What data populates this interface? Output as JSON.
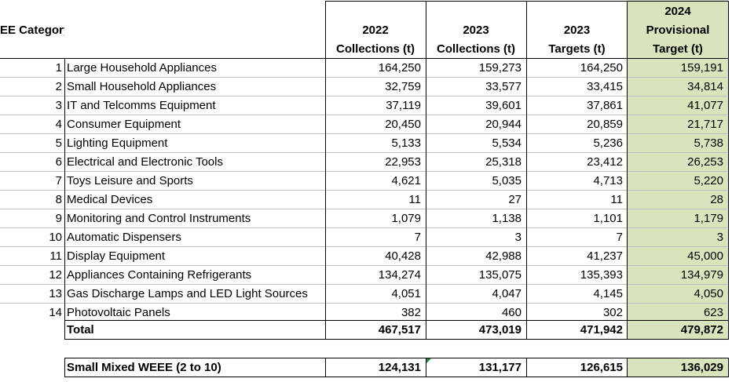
{
  "table": {
    "headers": {
      "category": "EEE Category",
      "col_2022": [
        "2022",
        "Collections (t)"
      ],
      "col_2023c": [
        "2023",
        "Collections (t)"
      ],
      "col_2023t": [
        "2023",
        "Targets (t)"
      ],
      "col_2024": [
        "2024",
        "Provisional",
        "Target (t)"
      ]
    },
    "rows": [
      {
        "num": "1",
        "name": "Large Household Appliances",
        "c2022": "164,250",
        "c2023": "159,273",
        "t2023": "164,250",
        "t2024": "159,191"
      },
      {
        "num": "2",
        "name": "Small Household Appliances",
        "c2022": "32,759",
        "c2023": "33,577",
        "t2023": "33,415",
        "t2024": "34,814"
      },
      {
        "num": "3",
        "name": "IT and Telcomms Equipment",
        "c2022": "37,119",
        "c2023": "39,601",
        "t2023": "37,861",
        "t2024": "41,077"
      },
      {
        "num": "4",
        "name": "Consumer Equipment",
        "c2022": "20,450",
        "c2023": "20,944",
        "t2023": "20,859",
        "t2024": "21,717"
      },
      {
        "num": "5",
        "name": "Lighting Equipment",
        "c2022": "5,133",
        "c2023": "5,534",
        "t2023": "5,236",
        "t2024": "5,738"
      },
      {
        "num": "6",
        "name": "Electrical and Electronic Tools",
        "c2022": "22,953",
        "c2023": "25,318",
        "t2023": "23,412",
        "t2024": "26,253"
      },
      {
        "num": "7",
        "name": "Toys Leisure and Sports",
        "c2022": "4,621",
        "c2023": "5,035",
        "t2023": "4,713",
        "t2024": "5,220"
      },
      {
        "num": "8",
        "name": "Medical Devices",
        "c2022": "11",
        "c2023": "27",
        "t2023": "11",
        "t2024": "28"
      },
      {
        "num": "9",
        "name": "Monitoring and Control Instruments",
        "c2022": "1,079",
        "c2023": "1,138",
        "t2023": "1,101",
        "t2024": "1,179"
      },
      {
        "num": "10",
        "name": "Automatic Dispensers",
        "c2022": "7",
        "c2023": "3",
        "t2023": "7",
        "t2024": "3"
      },
      {
        "num": "11",
        "name": "Display Equipment",
        "c2022": "40,428",
        "c2023": "42,988",
        "t2023": "41,237",
        "t2024": "45,000"
      },
      {
        "num": "12",
        "name": "Appliances Containing Refrigerants",
        "c2022": "134,274",
        "c2023": "135,075",
        "t2023": "135,393",
        "t2024": "134,979"
      },
      {
        "num": "13",
        "name": "Gas Discharge Lamps and LED Light Sources",
        "c2022": "4,051",
        "c2023": "4,047",
        "t2023": "4,145",
        "t2024": "4,050"
      },
      {
        "num": "14",
        "name": "Photovoltaic Panels",
        "c2022": "382",
        "c2023": "460",
        "t2023": "302",
        "t2024": "623"
      }
    ],
    "total": {
      "label": "Total",
      "c2022": "467,517",
      "c2023": "473,019",
      "t2023": "471,942",
      "t2024": "479,872"
    },
    "summary": {
      "label": "Small Mixed WEEE (2 to 10)",
      "c2022": "124,131",
      "c2023": "131,177",
      "t2023": "126,615",
      "t2024": "136,029"
    }
  },
  "colors": {
    "highlight": "#d8e4bc",
    "comment_marker": "#1e8a3a"
  }
}
